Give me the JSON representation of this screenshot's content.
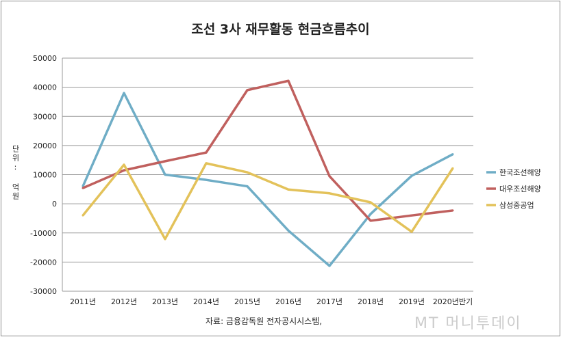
{
  "chart_data": {
    "type": "line",
    "title": "조선 3사 재무활동 현금흐름추이",
    "ylabel": "단위: 억원",
    "categories": [
      "2011년",
      "2012년",
      "2013년",
      "2014년",
      "2015년",
      "2016년",
      "2017년",
      "2018년",
      "2019년",
      "2020년반기"
    ],
    "ylim": [
      -30000,
      50000
    ],
    "yticks": [
      "50000",
      "40000",
      "30000",
      "20000",
      "10000",
      "0",
      "-10000",
      "-20000",
      "-30000"
    ],
    "grid": true,
    "legend": "right",
    "series": [
      {
        "name": "한국조선해양",
        "color": "#6fadc6",
        "values": [
          6000,
          38000,
          10000,
          8200,
          6000,
          -9200,
          -21300,
          -3500,
          9600,
          17000
        ]
      },
      {
        "name": "대우조선해양",
        "color": "#c0605e",
        "values": [
          5400,
          11500,
          14600,
          17600,
          39000,
          42200,
          9500,
          -5800,
          -4000,
          -2300
        ]
      },
      {
        "name": "삼성중공업",
        "color": "#e3c25a",
        "values": [
          -4000,
          13400,
          -12100,
          13900,
          10800,
          4900,
          3600,
          500,
          -9600,
          12200
        ]
      }
    ]
  },
  "source": "자료: 금융감독원 전자공시시스템,",
  "watermark": "MT 머니투데이"
}
